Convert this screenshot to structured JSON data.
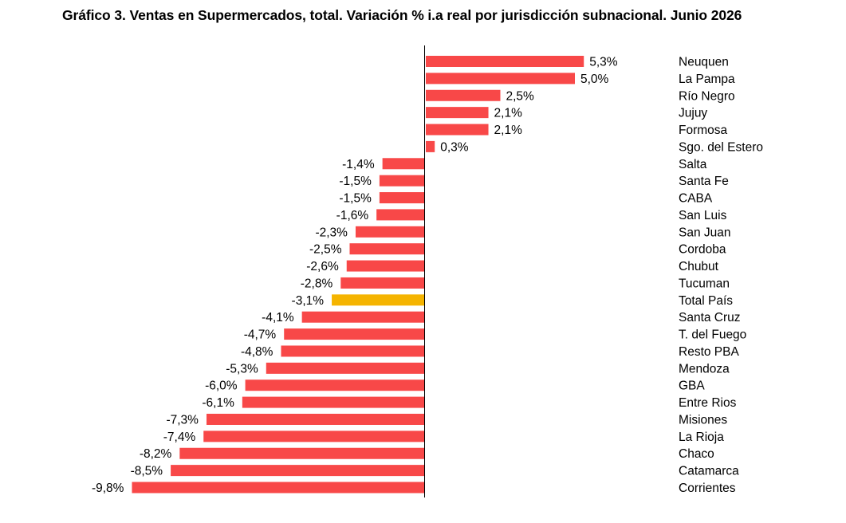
{
  "chart_data": {
    "type": "bar",
    "orientation": "horizontal",
    "title": "Gráfico 3. Ventas en Supermercados, total. Variación % i.a real por jurisdicción subnacional. Junio 2026",
    "categories": [
      "Neuquen",
      "La Pampa",
      "Río Negro",
      "Jujuy",
      "Formosa",
      "Sgo. del Estero",
      "Salta",
      "Santa Fe",
      "CABA",
      "San Luis",
      "San Juan",
      "Cordoba",
      "Chubut",
      "Tucuman",
      "Total País",
      "Santa Cruz",
      "T. del Fuego",
      "Resto PBA",
      "Mendoza",
      "GBA",
      "Entre Rios",
      "Misiones",
      "La Rioja",
      "Chaco",
      "Catamarca",
      "Corrientes"
    ],
    "values": [
      5.3,
      5.0,
      2.5,
      2.1,
      2.1,
      0.3,
      -1.4,
      -1.5,
      -1.5,
      -1.6,
      -2.3,
      -2.5,
      -2.6,
      -2.8,
      -3.1,
      -4.1,
      -4.7,
      -4.8,
      -5.3,
      -6.0,
      -6.1,
      -7.3,
      -7.4,
      -8.2,
      -8.5,
      -9.8
    ],
    "data_labels": [
      "5,3%",
      "5,0%",
      "2,5%",
      "2,1%",
      "2,1%",
      "0,3%",
      "-1,4%",
      "-1,5%",
      "-1,5%",
      "-1,6%",
      "-2,3%",
      "-2,5%",
      "-2,6%",
      "-2,8%",
      "-3,1%",
      "-4,1%",
      "-4,7%",
      "-4,8%",
      "-5,3%",
      "-6,0%",
      "-6,1%",
      "-7,3%",
      "-7,4%",
      "-8,2%",
      "-8,5%",
      "-9,8%"
    ],
    "highlight_category": "Total País",
    "colors": {
      "bar": "#f84848",
      "highlight": "#f5b400",
      "axis": "#000000",
      "text": "#000000"
    },
    "grid": false,
    "legend": "none",
    "category_labels_position": "right",
    "xlim": [
      -10.2,
      6.5
    ]
  }
}
